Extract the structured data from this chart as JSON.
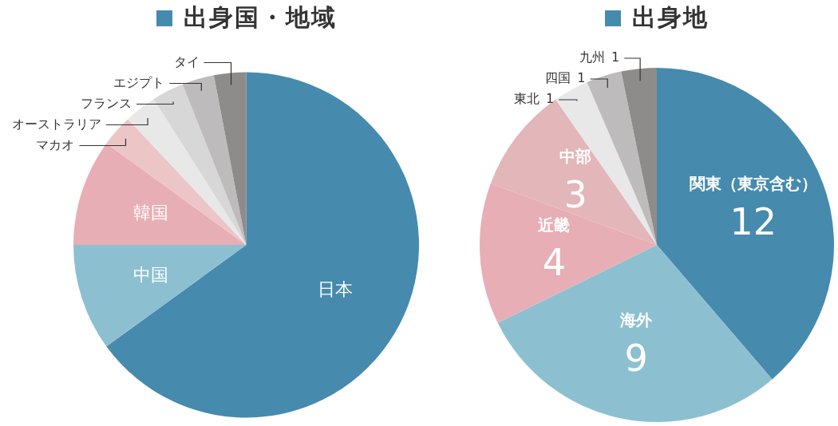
{
  "chart_data": [
    {
      "type": "pie",
      "title": "出身国・地域",
      "categories": [
        "日本",
        "中国",
        "韓国",
        "マカオ",
        "オーストラリア",
        "フランス",
        "エジプト",
        "タイ"
      ],
      "values": [
        65,
        10,
        10,
        3,
        3,
        3,
        3,
        3
      ],
      "colors": [
        "#468aae",
        "#8cc0d0",
        "#e8aeb5",
        "#ecc5c7",
        "#e8e8e8",
        "#d7d7d7",
        "#bdbbbc",
        "#8e8c8b"
      ]
    },
    {
      "type": "pie",
      "title": "出身地",
      "categories": [
        "関東（東京含む）",
        "海外",
        "近畿",
        "中部",
        "東北",
        "四国",
        "九州"
      ],
      "values": [
        12,
        9,
        4,
        3,
        1,
        1,
        1
      ],
      "colors": [
        "#468aae",
        "#8cc0d0",
        "#e8aeb5",
        "#e3b6b9",
        "#e8e8e8",
        "#bdbbbc",
        "#8e8c8b"
      ],
      "data_labels": true
    }
  ]
}
